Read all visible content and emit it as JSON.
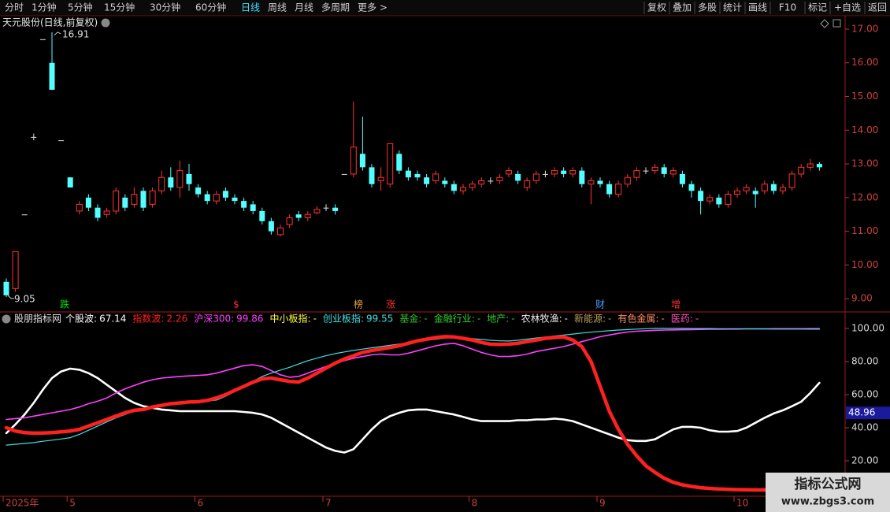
{
  "toolbar": {
    "periods": [
      "分时",
      "1分钟",
      "5分钟",
      "15分钟",
      "30分钟",
      "60分钟",
      "日线",
      "周线",
      "月线",
      "多周期",
      "更多 >"
    ],
    "active_period": 6,
    "buttons": [
      "复权",
      "叠加",
      "多股",
      "统计",
      "画线",
      "F10",
      "标记",
      "+自选",
      "返回"
    ]
  },
  "watermark": {
    "title": "指标公式网",
    "url": "www.zbgs3.com"
  },
  "chart_data": [
    {
      "type": "candlestick",
      "title": "天元股份(日线,前复权)",
      "up_color": "#ff3232",
      "down_color": "#54ffff",
      "flat_color": "#e0e0e0",
      "ylim": [
        8.63,
        17.35
      ],
      "yticks": [
        {
          "value": 9,
          "label": "9.00"
        },
        {
          "value": 10,
          "label": "10.00"
        },
        {
          "value": 11,
          "label": "11.00"
        },
        {
          "value": 12,
          "label": "12.00"
        },
        {
          "value": 13,
          "label": "13.00"
        },
        {
          "value": 14,
          "label": "14.00"
        },
        {
          "value": 15,
          "label": "15.00"
        },
        {
          "value": 16,
          "label": "16.00"
        },
        {
          "value": 17,
          "label": "17.00"
        }
      ],
      "categories": [
        "2025年",
        null,
        null,
        null,
        null,
        null,
        null,
        "5",
        null,
        null,
        null,
        null,
        null,
        null,
        null,
        null,
        null,
        null,
        null,
        null,
        null,
        "6",
        null,
        null,
        null,
        null,
        null,
        null,
        null,
        null,
        null,
        null,
        null,
        null,
        null,
        "7",
        null,
        null,
        null,
        null,
        null,
        null,
        null,
        null,
        null,
        null,
        null,
        null,
        null,
        null,
        null,
        "8",
        null,
        null,
        null,
        null,
        null,
        null,
        null,
        null,
        null,
        null,
        null,
        null,
        null,
        "9",
        null,
        null,
        null,
        null,
        null,
        null,
        null,
        null,
        null,
        null,
        null,
        null,
        null,
        null,
        "10",
        null,
        null,
        null,
        null,
        null,
        null,
        null,
        null,
        null
      ],
      "open": [
        9.5,
        9.3,
        11.5,
        13.8,
        16.7,
        16.0,
        13.7,
        12.6,
        11.6,
        12.0,
        11.7,
        11.5,
        11.6,
        12.0,
        11.8,
        12.2,
        11.8,
        12.2,
        12.6,
        12.3,
        12.7,
        12.3,
        12.1,
        11.9,
        12.2,
        12.0,
        11.9,
        11.8,
        11.6,
        11.3,
        10.9,
        11.2,
        11.5,
        11.4,
        11.55,
        11.7,
        11.7,
        12.7,
        12.7,
        13.3,
        12.9,
        12.5,
        12.4,
        13.3,
        12.8,
        12.7,
        12.6,
        12.5,
        12.5,
        12.4,
        12.2,
        12.3,
        12.4,
        12.5,
        12.5,
        12.7,
        12.7,
        12.3,
        12.5,
        12.7,
        12.7,
        12.8,
        12.7,
        12.8,
        12.4,
        12.5,
        12.4,
        12.1,
        12.4,
        12.6,
        12.8,
        12.8,
        12.9,
        12.7,
        12.7,
        12.4,
        12.2,
        11.9,
        12.0,
        11.8,
        12.1,
        12.2,
        12.2,
        12.2,
        12.4,
        12.2,
        12.3,
        12.7,
        12.9,
        13.0
      ],
      "close": [
        9.1,
        10.4,
        11.5,
        13.8,
        16.7,
        15.2,
        13.7,
        12.3,
        11.8,
        11.7,
        11.4,
        11.6,
        12.2,
        11.7,
        12.1,
        11.7,
        12.2,
        12.6,
        12.3,
        12.8,
        12.4,
        12.1,
        11.9,
        12.1,
        12.0,
        11.9,
        11.7,
        11.6,
        11.3,
        11.0,
        11.1,
        11.4,
        11.4,
        11.5,
        11.65,
        11.7,
        11.6,
        12.7,
        13.5,
        12.9,
        12.4,
        12.6,
        13.6,
        12.8,
        12.6,
        12.6,
        12.4,
        12.7,
        12.4,
        12.2,
        12.3,
        12.4,
        12.5,
        12.5,
        12.6,
        12.8,
        12.5,
        12.5,
        12.7,
        12.7,
        12.8,
        12.7,
        12.8,
        12.4,
        12.5,
        12.4,
        12.1,
        12.4,
        12.6,
        12.8,
        12.8,
        12.9,
        12.7,
        12.8,
        12.4,
        12.2,
        11.9,
        12.0,
        11.8,
        12.1,
        12.2,
        12.3,
        12.1,
        12.4,
        12.2,
        12.3,
        12.7,
        12.9,
        13.0,
        12.9
      ],
      "high": [
        9.6,
        10.4,
        11.5,
        13.9,
        16.7,
        16.91,
        13.7,
        12.6,
        11.9,
        12.1,
        11.8,
        11.7,
        12.3,
        12.1,
        12.3,
        12.3,
        12.3,
        12.8,
        12.9,
        13.1,
        13.0,
        12.4,
        12.2,
        12.2,
        12.3,
        12.1,
        12.0,
        11.9,
        11.7,
        11.4,
        11.2,
        11.5,
        11.6,
        11.6,
        11.75,
        11.8,
        11.8,
        12.7,
        14.85,
        14.4,
        13.0,
        12.9,
        13.6,
        13.4,
        12.9,
        12.8,
        12.7,
        12.8,
        12.6,
        12.5,
        12.4,
        12.5,
        12.6,
        12.6,
        12.7,
        12.9,
        12.8,
        12.6,
        12.8,
        12.8,
        12.9,
        12.9,
        12.9,
        12.9,
        12.6,
        12.6,
        12.5,
        12.5,
        12.7,
        12.9,
        12.9,
        13.0,
        13.0,
        12.9,
        12.8,
        12.5,
        12.3,
        12.1,
        12.1,
        12.2,
        12.3,
        12.4,
        12.3,
        12.5,
        12.5,
        12.4,
        12.8,
        13.0,
        13.15,
        13.05
      ],
      "low": [
        9.05,
        9.2,
        11.5,
        13.7,
        16.7,
        15.2,
        13.7,
        12.3,
        11.5,
        11.6,
        11.3,
        11.4,
        11.5,
        11.6,
        11.7,
        11.6,
        11.7,
        12.1,
        12.2,
        12.0,
        12.2,
        12.0,
        11.8,
        11.8,
        11.9,
        11.8,
        11.6,
        11.5,
        11.2,
        10.9,
        10.85,
        11.1,
        11.3,
        11.3,
        11.5,
        11.6,
        11.5,
        12.7,
        12.6,
        12.8,
        12.3,
        12.2,
        12.3,
        12.7,
        12.5,
        12.5,
        12.3,
        12.4,
        12.3,
        12.1,
        12.1,
        12.2,
        12.3,
        12.4,
        12.4,
        12.6,
        12.4,
        12.2,
        12.4,
        12.6,
        12.6,
        12.6,
        12.6,
        12.3,
        11.8,
        12.3,
        12.0,
        12.0,
        12.3,
        12.5,
        12.7,
        12.7,
        12.6,
        12.6,
        12.3,
        12.0,
        11.5,
        11.8,
        11.7,
        11.7,
        12.0,
        12.1,
        11.7,
        12.1,
        12.1,
        12.1,
        12.2,
        12.6,
        12.8,
        12.8
      ],
      "events": [
        {
          "text": "跌",
          "color": "#00e000"
        },
        {
          "text": "$",
          "color": "#ff3030"
        },
        {
          "text": "榜",
          "color": "#e0a040"
        },
        {
          "text": "涨",
          "color": "#ff3030"
        },
        {
          "text": "财",
          "color": "#4a9cff"
        },
        {
          "text": "增",
          "color": "#ff3030"
        }
      ]
    },
    {
      "type": "line",
      "title": "股朋指标网",
      "separator": ":",
      "ylim": [
        -1.4,
        109
      ],
      "current_value": 48.96,
      "yticks": [
        {
          "value": 20,
          "label": "20.00"
        },
        {
          "value": 40,
          "label": "40.00"
        },
        {
          "value": 60,
          "label": "60.00"
        },
        {
          "value": 80,
          "label": "80.00"
        },
        {
          "value": 100,
          "label": "100.00"
        }
      ],
      "series": [
        {
          "name": "个股波",
          "color": "#ffffff",
          "values": [
            36.7,
            42,
            48,
            55,
            63,
            70,
            74,
            75.7,
            75,
            73,
            70,
            66,
            62,
            58,
            55,
            53,
            52,
            51,
            50.5,
            50,
            50,
            50,
            50,
            50,
            50,
            50,
            49.5,
            49,
            48,
            46,
            43,
            40,
            37,
            34,
            31,
            28,
            26,
            25,
            27,
            33,
            39,
            44,
            47,
            49,
            50.5,
            51,
            51,
            50,
            49,
            48,
            46.5,
            45,
            44,
            44,
            44,
            44,
            44.5,
            44.5,
            45,
            45,
            45.5,
            45,
            44,
            42,
            40,
            38,
            36,
            34,
            32.5,
            32,
            32,
            33,
            36,
            39,
            40.5,
            40.5,
            40,
            38.5,
            37.6,
            37.6,
            38,
            40,
            43,
            46,
            48.6,
            50.5,
            53,
            55.7,
            61,
            67.14
          ]
        },
        {
          "name": "指数波",
          "color": "#ff2020",
          "values": [
            40,
            38,
            37,
            36.7,
            36.8,
            37,
            37.5,
            38,
            39,
            41,
            43,
            45,
            47,
            49,
            50.5,
            51,
            52.5,
            53.5,
            54.5,
            55,
            55.5,
            55.7,
            56.5,
            58,
            60,
            62.5,
            65,
            67.5,
            69.5,
            70,
            69,
            68,
            67.6,
            70,
            73,
            76,
            79,
            81.5,
            83.5,
            85.5,
            86.7,
            87.5,
            88.5,
            89.5,
            91,
            92.5,
            93.5,
            94.5,
            95,
            94.8,
            94,
            93,
            91.5,
            90.5,
            90.3,
            90.5,
            91,
            92,
            93,
            94,
            94.5,
            94.8,
            93,
            89,
            80,
            65,
            50,
            39,
            30,
            23,
            17,
            13,
            9.5,
            7,
            5.5,
            4.5,
            3.8,
            3.3,
            3,
            2.8,
            2.6,
            2.5,
            2.4,
            2.4,
            2.3,
            2.3,
            2.3,
            2.3,
            2.3,
            2.26
          ]
        },
        {
          "name": "沪深300",
          "color": "#ff40ff",
          "values": [
            45,
            45.5,
            46,
            47,
            48,
            49,
            50,
            51,
            52.5,
            54.5,
            56,
            58,
            61,
            63.5,
            65.5,
            67.5,
            69,
            70,
            70.5,
            71,
            71.3,
            71.6,
            72,
            73,
            74.5,
            76,
            77.5,
            78,
            77,
            74.5,
            72,
            70.5,
            71,
            73,
            75,
            77,
            79,
            80.5,
            82,
            83,
            84,
            84.5,
            84,
            84,
            85,
            86.5,
            88,
            89.5,
            90.5,
            91,
            89.5,
            87.5,
            85.5,
            84,
            83,
            83,
            83.5,
            84.5,
            86,
            87,
            88,
            89,
            90.5,
            92,
            93.5,
            95,
            96,
            97,
            97.8,
            98.3,
            98.6,
            98.8,
            99,
            99.1,
            99.2,
            99.3,
            99.4,
            99.5,
            99.5,
            99.6,
            99.6,
            99.7,
            99.7,
            99.7,
            99.8,
            99.8,
            99.8,
            99.8,
            99.86,
            99.86
          ]
        },
        {
          "name": "中小板指",
          "color": "#ffff40",
          "label": "-"
        },
        {
          "name": "创业板指",
          "color": "#40e0e0",
          "values": [
            29.5,
            30,
            30.5,
            31,
            31.8,
            32.5,
            33.2,
            34,
            36,
            38.5,
            41,
            43.5,
            46,
            48,
            50,
            51,
            52,
            53,
            53.8,
            54.5,
            55,
            55.6,
            56.2,
            56.7,
            59,
            62,
            65,
            68,
            71,
            73,
            74.8,
            76.5,
            78.5,
            80.5,
            82,
            83.5,
            84.8,
            85.8,
            86.7,
            87.5,
            88.3,
            89,
            89.8,
            90.5,
            91.2,
            92,
            92.8,
            93.5,
            94.2,
            94.8,
            94.3,
            93.8,
            93.3,
            92.8,
            92.5,
            92.4,
            92.8,
            93.5,
            94.2,
            94.8,
            95.4,
            96,
            96.6,
            97.2,
            97.7,
            98.2,
            98.6,
            99,
            99.3,
            99.6,
            99.8,
            100,
            100,
            100,
            100,
            99.9,
            99.9,
            99.9,
            99.8,
            99.8,
            99.8,
            99.7,
            99.7,
            99.7,
            99.6,
            99.6,
            99.6,
            99.6,
            99.55,
            99.55
          ]
        },
        {
          "name": "基金",
          "color": "#30c030",
          "label": "-"
        },
        {
          "name": "金融行业",
          "color": "#30d030",
          "label": "-"
        },
        {
          "name": "地产",
          "color": "#30d030",
          "label": "-"
        },
        {
          "name": "农林牧渔",
          "color": "#e8e8e8",
          "label": "-"
        },
        {
          "name": "新能源",
          "color": "#b8a060",
          "label": "-"
        },
        {
          "name": "有色金属",
          "color": "#ff9060",
          "label": "-"
        },
        {
          "name": "医药",
          "color": "#ff50c0",
          "label": "-"
        }
      ]
    }
  ]
}
